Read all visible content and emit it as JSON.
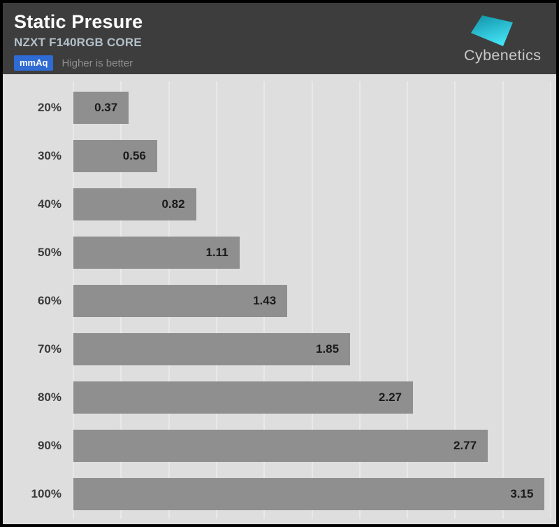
{
  "header": {
    "title": "Static Presure",
    "subtitle": "NZXT F140RGB CORE",
    "unit_badge": "mmAq",
    "note": "Higher is better",
    "logo_text": "Cybenetics"
  },
  "colors": {
    "header_bg": "#3d3d3d",
    "title_text": "#ffffff",
    "subtitle_text": "#b3c0c9",
    "badge_blue": "#2e6bd3",
    "note_gray": "#8f8f8f",
    "chart_bg": "#dedede",
    "gridline": "#e9e9e9",
    "bar_gray": "#8f8f8f",
    "value_text": "#1a1a1a",
    "logo_cyan_dark": "#1193a9",
    "logo_cyan_light": "#43e2f4",
    "logo_text_gray": "#c8c8c8"
  },
  "chart_data": {
    "type": "bar",
    "orientation": "horizontal",
    "title": "Static Presure",
    "subtitle": "NZXT F140RGB CORE",
    "unit": "mmAq",
    "note": "Higher is better",
    "categories": [
      "20%",
      "30%",
      "40%",
      "50%",
      "60%",
      "70%",
      "80%",
      "90%",
      "100%"
    ],
    "values": [
      0.37,
      0.56,
      0.82,
      1.11,
      1.43,
      1.85,
      2.27,
      2.77,
      3.15
    ],
    "value_labels": [
      "0.37",
      "0.56",
      "0.82",
      "1.11",
      "1.43",
      "1.85",
      "2.27",
      "2.77",
      "3.15"
    ],
    "xlim": [
      0,
      3.19
    ],
    "x_gridline_count": 11,
    "grid": true,
    "legend": false,
    "value_label_position": "inside-end",
    "category_axis_side": "left"
  }
}
